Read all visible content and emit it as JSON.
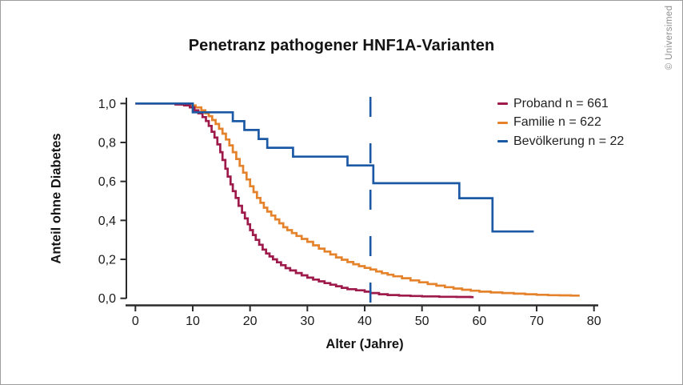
{
  "header": {
    "title": "Penetranz pathogener HNF1A-Varianten",
    "copyright": "© Universimed"
  },
  "chart_data": {
    "type": "line",
    "subtype": "kaplan-meier-step-curves",
    "title": "Penetranz pathogener HNF1A-Varianten",
    "xlabel": "Alter (Jahre)",
    "ylabel": "Anteil ohne Diabetes",
    "xlim": [
      0,
      80
    ],
    "ylim": [
      0.0,
      1.0
    ],
    "grid": false,
    "legend_position": "upper-right",
    "x_ticks": {
      "values": [
        0,
        10,
        20,
        30,
        40,
        50,
        60,
        70,
        80
      ],
      "labels": [
        "0",
        "10",
        "20",
        "30",
        "40",
        "50",
        "60",
        "70",
        "80"
      ]
    },
    "y_ticks": {
      "values": [
        0.0,
        0.2,
        0.4,
        0.6,
        0.8,
        1.0
      ],
      "labels": [
        "0,0",
        "0,2",
        "0,4",
        "0,6",
        "0,8",
        "1,0"
      ]
    },
    "reference_line": {
      "axis": "x",
      "value": 41,
      "style": "dashed",
      "color": "#1c59a4"
    },
    "axis_color": "#2b2b2b",
    "series": [
      {
        "name": "Familie",
        "label": "Familie n = 622",
        "n": 622,
        "color": "#e5832c",
        "end_age": 77.5,
        "points": [
          [
            0,
            1.0
          ],
          [
            8,
            0.995
          ],
          [
            9.5,
            0.99
          ],
          [
            10.5,
            0.98
          ],
          [
            11.5,
            0.965
          ],
          [
            12.2,
            0.95
          ],
          [
            12.8,
            0.935
          ],
          [
            13.4,
            0.915
          ],
          [
            14,
            0.895
          ],
          [
            14.6,
            0.87
          ],
          [
            15.2,
            0.845
          ],
          [
            15.8,
            0.815
          ],
          [
            16.4,
            0.785
          ],
          [
            17,
            0.75
          ],
          [
            17.6,
            0.715
          ],
          [
            18.2,
            0.68
          ],
          [
            18.8,
            0.645
          ],
          [
            19.4,
            0.61
          ],
          [
            20,
            0.575
          ],
          [
            20.6,
            0.545
          ],
          [
            21.2,
            0.515
          ],
          [
            21.8,
            0.49
          ],
          [
            22.4,
            0.465
          ],
          [
            23,
            0.445
          ],
          [
            23.7,
            0.425
          ],
          [
            24.4,
            0.405
          ],
          [
            25.1,
            0.385
          ],
          [
            25.8,
            0.365
          ],
          [
            26.5,
            0.35
          ],
          [
            27.3,
            0.335
          ],
          [
            28.1,
            0.32
          ],
          [
            29,
            0.305
          ],
          [
            30,
            0.29
          ],
          [
            31,
            0.272
          ],
          [
            32,
            0.255
          ],
          [
            33,
            0.24
          ],
          [
            34,
            0.225
          ],
          [
            35,
            0.21
          ],
          [
            36,
            0.198
          ],
          [
            37,
            0.186
          ],
          [
            38,
            0.175
          ],
          [
            39,
            0.165
          ],
          [
            40,
            0.156
          ],
          [
            41,
            0.148
          ],
          [
            42,
            0.138
          ],
          [
            43,
            0.129
          ],
          [
            44,
            0.121
          ],
          [
            45,
            0.113
          ],
          [
            46.5,
            0.103
          ],
          [
            48,
            0.092
          ],
          [
            49.5,
            0.082
          ],
          [
            51,
            0.073
          ],
          [
            52.5,
            0.065
          ],
          [
            54,
            0.057
          ],
          [
            55.5,
            0.05
          ],
          [
            57,
            0.044
          ],
          [
            58.5,
            0.039
          ],
          [
            60,
            0.034
          ],
          [
            62,
            0.03
          ],
          [
            64,
            0.027
          ],
          [
            66,
            0.024
          ],
          [
            68,
            0.021
          ],
          [
            70,
            0.018
          ],
          [
            72,
            0.016
          ],
          [
            74,
            0.015
          ],
          [
            76,
            0.014
          ]
        ]
      },
      {
        "name": "Proband",
        "label": "Proband n = 661",
        "n": 661,
        "color": "#9e1a4a",
        "end_age": 59,
        "points": [
          [
            0,
            1.0
          ],
          [
            7,
            0.995
          ],
          [
            8.5,
            0.99
          ],
          [
            9.5,
            0.98
          ],
          [
            10.3,
            0.965
          ],
          [
            11,
            0.95
          ],
          [
            11.7,
            0.93
          ],
          [
            12.3,
            0.91
          ],
          [
            12.8,
            0.885
          ],
          [
            13.3,
            0.855
          ],
          [
            13.8,
            0.825
          ],
          [
            14.3,
            0.79
          ],
          [
            14.8,
            0.75
          ],
          [
            15.2,
            0.71
          ],
          [
            15.7,
            0.665
          ],
          [
            16.1,
            0.625
          ],
          [
            16.6,
            0.585
          ],
          [
            17,
            0.55
          ],
          [
            17.5,
            0.515
          ],
          [
            18,
            0.475
          ],
          [
            18.6,
            0.44
          ],
          [
            19.1,
            0.41
          ],
          [
            19.6,
            0.38
          ],
          [
            20,
            0.35
          ],
          [
            20.5,
            0.325
          ],
          [
            21,
            0.3
          ],
          [
            21.6,
            0.275
          ],
          [
            22.2,
            0.25
          ],
          [
            22.8,
            0.23
          ],
          [
            23.4,
            0.215
          ],
          [
            24,
            0.2
          ],
          [
            24.7,
            0.185
          ],
          [
            25.4,
            0.17
          ],
          [
            26.2,
            0.155
          ],
          [
            27,
            0.143
          ],
          [
            28,
            0.13
          ],
          [
            29,
            0.118
          ],
          [
            30,
            0.106
          ],
          [
            31,
            0.096
          ],
          [
            32,
            0.087
          ],
          [
            33,
            0.078
          ],
          [
            34,
            0.07
          ],
          [
            35,
            0.062
          ],
          [
            36,
            0.054
          ],
          [
            37,
            0.047
          ],
          [
            38.5,
            0.041
          ],
          [
            40,
            0.034
          ],
          [
            41,
            0.027
          ],
          [
            42.5,
            0.021
          ],
          [
            44,
            0.017
          ],
          [
            46,
            0.014
          ],
          [
            48,
            0.012
          ],
          [
            50,
            0.01
          ],
          [
            53,
            0.008
          ],
          [
            56,
            0.007
          ],
          [
            58.5,
            0.006
          ]
        ]
      },
      {
        "name": "Bevölkerung",
        "label": "Bevölkerung n = 22",
        "n": 22,
        "color": "#1c59a4",
        "end_age": 69.5,
        "points": [
          [
            0,
            1.0
          ],
          [
            10,
            0.955
          ],
          [
            17,
            0.909
          ],
          [
            19,
            0.864
          ],
          [
            21.5,
            0.818
          ],
          [
            23,
            0.773
          ],
          [
            27.5,
            0.727
          ],
          [
            37,
            0.682
          ],
          [
            41.5,
            0.591
          ],
          [
            56.5,
            0.514
          ],
          [
            62.3,
            0.343
          ]
        ]
      }
    ]
  }
}
